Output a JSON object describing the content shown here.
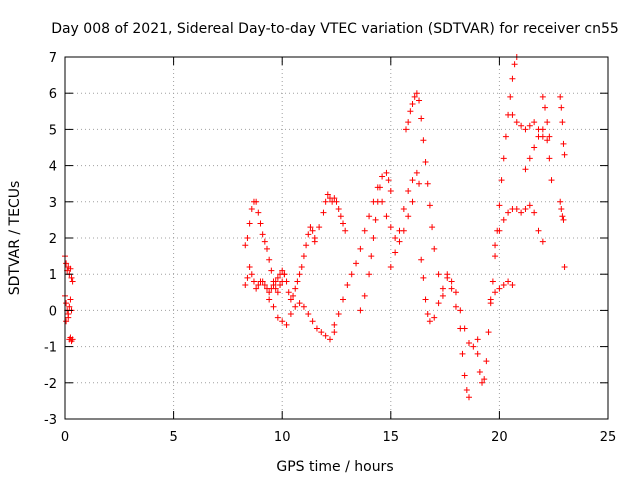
{
  "chart_data": {
    "type": "scatter",
    "title": "Day 008 of 2021, Sidereal Day-to-day VTEC variation (SDTVAR) for receiver cn55",
    "xlabel": "GPS time / hours",
    "ylabel": "SDTVAR / TECUs",
    "xlim": [
      0,
      25
    ],
    "ylim": [
      -3,
      7
    ],
    "x_ticks": [
      0,
      5,
      10,
      15,
      20,
      25
    ],
    "x_tick_labels": [
      "0",
      "5",
      "10",
      "15",
      "20",
      "25"
    ],
    "y_ticks": [
      -3,
      -2,
      -1,
      0,
      1,
      2,
      3,
      4,
      5,
      6,
      7
    ],
    "y_tick_labels": [
      "-3",
      "-2",
      "-1",
      "0",
      "1",
      "2",
      "3",
      "4",
      "5",
      "6",
      "7"
    ],
    "grid": true,
    "marker": "+",
    "marker_color": "#ff0000",
    "series": [
      {
        "points": [
          [
            0.0,
            1.5
          ],
          [
            0.05,
            1.3
          ],
          [
            0.1,
            1.1
          ],
          [
            0.15,
            1.2
          ],
          [
            0.2,
            1.0
          ],
          [
            0.25,
            1.15
          ],
          [
            0.3,
            0.9
          ],
          [
            0.35,
            0.8
          ],
          [
            0.0,
            0.4
          ],
          [
            0.05,
            0.2
          ],
          [
            0.1,
            0.0
          ],
          [
            0.15,
            -0.2
          ],
          [
            0.2,
            0.1
          ],
          [
            0.25,
            0.3
          ],
          [
            0.3,
            0.0
          ],
          [
            0.05,
            -0.3
          ],
          [
            0.15,
            -0.1
          ],
          [
            0.2,
            -0.8
          ],
          [
            0.25,
            -0.75
          ],
          [
            0.3,
            -0.85
          ],
          [
            0.35,
            -0.8
          ],
          [
            8.3,
            1.8
          ],
          [
            8.4,
            2.0
          ],
          [
            8.5,
            2.4
          ],
          [
            8.6,
            2.8
          ],
          [
            8.7,
            3.0
          ],
          [
            8.8,
            3.0
          ],
          [
            8.9,
            2.7
          ],
          [
            9.0,
            2.4
          ],
          [
            9.1,
            2.1
          ],
          [
            9.2,
            1.9
          ],
          [
            9.3,
            1.7
          ],
          [
            9.4,
            1.4
          ],
          [
            9.5,
            1.1
          ],
          [
            9.6,
            0.8
          ],
          [
            9.7,
            0.6
          ],
          [
            9.8,
            0.5
          ],
          [
            9.9,
            0.7
          ],
          [
            10.0,
            0.8
          ],
          [
            10.1,
            1.0
          ],
          [
            8.3,
            0.7
          ],
          [
            8.4,
            0.9
          ],
          [
            8.5,
            1.2
          ],
          [
            8.6,
            1.0
          ],
          [
            8.7,
            0.8
          ],
          [
            8.8,
            0.6
          ],
          [
            8.9,
            0.7
          ],
          [
            9.0,
            0.8
          ],
          [
            9.1,
            0.8
          ],
          [
            9.2,
            0.7
          ],
          [
            9.3,
            0.6
          ],
          [
            9.4,
            0.5
          ],
          [
            9.5,
            0.6
          ],
          [
            9.6,
            0.7
          ],
          [
            9.7,
            0.8
          ],
          [
            9.8,
            0.9
          ],
          [
            9.9,
            1.0
          ],
          [
            10.0,
            1.1
          ],
          [
            10.1,
            1.0
          ],
          [
            10.2,
            0.8
          ],
          [
            10.3,
            0.5
          ],
          [
            10.4,
            0.3
          ],
          [
            10.5,
            0.4
          ],
          [
            10.6,
            0.6
          ],
          [
            10.7,
            0.8
          ],
          [
            10.8,
            1.0
          ],
          [
            10.9,
            1.2
          ],
          [
            11.0,
            1.5
          ],
          [
            11.1,
            1.8
          ],
          [
            11.2,
            2.1
          ],
          [
            11.3,
            2.3
          ],
          [
            11.4,
            2.2
          ],
          [
            11.5,
            2.0
          ],
          [
            9.4,
            0.3
          ],
          [
            9.6,
            0.1
          ],
          [
            9.8,
            -0.2
          ],
          [
            10.0,
            -0.3
          ],
          [
            10.2,
            -0.4
          ],
          [
            10.4,
            -0.1
          ],
          [
            10.6,
            0.1
          ],
          [
            10.8,
            0.2
          ],
          [
            11.0,
            0.1
          ],
          [
            11.2,
            -0.1
          ],
          [
            11.4,
            -0.3
          ],
          [
            11.6,
            -0.5
          ],
          [
            11.8,
            -0.6
          ],
          [
            12.0,
            -0.7
          ],
          [
            12.2,
            -0.8
          ],
          [
            12.4,
            -0.6
          ],
          [
            11.5,
            1.9
          ],
          [
            11.7,
            2.3
          ],
          [
            11.9,
            2.7
          ],
          [
            12.0,
            3.0
          ],
          [
            12.1,
            3.2
          ],
          [
            12.2,
            3.1
          ],
          [
            12.3,
            3.0
          ],
          [
            12.4,
            3.1
          ],
          [
            12.5,
            3.0
          ],
          [
            12.6,
            2.8
          ],
          [
            12.7,
            2.6
          ],
          [
            12.8,
            2.4
          ],
          [
            12.9,
            2.2
          ],
          [
            12.4,
            -0.4
          ],
          [
            12.6,
            -0.1
          ],
          [
            12.8,
            0.3
          ],
          [
            13.0,
            0.7
          ],
          [
            13.2,
            1.0
          ],
          [
            13.4,
            1.3
          ],
          [
            13.6,
            1.7
          ],
          [
            13.8,
            2.2
          ],
          [
            14.0,
            2.6
          ],
          [
            14.2,
            3.0
          ],
          [
            14.4,
            3.4
          ],
          [
            14.6,
            3.7
          ],
          [
            14.8,
            3.8
          ],
          [
            14.9,
            3.6
          ],
          [
            15.0,
            3.3
          ],
          [
            13.6,
            0.0
          ],
          [
            13.8,
            0.4
          ],
          [
            14.0,
            1.0
          ],
          [
            14.1,
            1.5
          ],
          [
            14.2,
            2.0
          ],
          [
            14.3,
            2.5
          ],
          [
            14.4,
            3.0
          ],
          [
            14.5,
            3.4
          ],
          [
            14.6,
            3.0
          ],
          [
            14.8,
            2.6
          ],
          [
            15.0,
            2.3
          ],
          [
            15.2,
            2.0
          ],
          [
            15.4,
            1.9
          ],
          [
            15.6,
            2.2
          ],
          [
            15.8,
            2.6
          ],
          [
            16.0,
            3.0
          ],
          [
            15.0,
            1.2
          ],
          [
            15.2,
            1.6
          ],
          [
            15.4,
            2.2
          ],
          [
            15.6,
            2.8
          ],
          [
            15.8,
            3.3
          ],
          [
            16.0,
            3.6
          ],
          [
            16.2,
            3.8
          ],
          [
            16.3,
            3.5
          ],
          [
            15.7,
            5.0
          ],
          [
            15.8,
            5.2
          ],
          [
            15.9,
            5.5
          ],
          [
            16.0,
            5.7
          ],
          [
            16.1,
            5.9
          ],
          [
            16.2,
            6.0
          ],
          [
            16.3,
            5.8
          ],
          [
            16.4,
            5.3
          ],
          [
            16.5,
            4.7
          ],
          [
            16.6,
            4.1
          ],
          [
            16.7,
            3.5
          ],
          [
            16.8,
            2.9
          ],
          [
            16.9,
            2.3
          ],
          [
            17.0,
            1.7
          ],
          [
            17.2,
            1.0
          ],
          [
            17.4,
            0.4
          ],
          [
            16.4,
            1.4
          ],
          [
            16.5,
            0.9
          ],
          [
            16.6,
            0.3
          ],
          [
            16.7,
            -0.1
          ],
          [
            16.8,
            -0.3
          ],
          [
            17.0,
            -0.2
          ],
          [
            17.2,
            0.2
          ],
          [
            17.4,
            0.6
          ],
          [
            17.6,
            0.9
          ],
          [
            17.8,
            0.8
          ],
          [
            18.0,
            0.5
          ],
          [
            18.2,
            0.0
          ],
          [
            18.4,
            -0.5
          ],
          [
            18.6,
            -0.9
          ],
          [
            18.8,
            -1.0
          ],
          [
            19.0,
            -0.8
          ],
          [
            17.6,
            1.0
          ],
          [
            17.8,
            0.6
          ],
          [
            18.0,
            0.1
          ],
          [
            18.2,
            -0.5
          ],
          [
            18.3,
            -1.2
          ],
          [
            18.4,
            -1.8
          ],
          [
            18.5,
            -2.2
          ],
          [
            18.6,
            -2.4
          ],
          [
            19.0,
            -1.2
          ],
          [
            19.1,
            -1.7
          ],
          [
            19.2,
            -2.0
          ],
          [
            19.3,
            -1.9
          ],
          [
            19.4,
            -1.4
          ],
          [
            19.5,
            -0.6
          ],
          [
            19.6,
            0.2
          ],
          [
            19.7,
            0.8
          ],
          [
            19.8,
            1.5
          ],
          [
            19.9,
            2.2
          ],
          [
            20.0,
            2.9
          ],
          [
            20.1,
            3.6
          ],
          [
            20.2,
            4.2
          ],
          [
            20.3,
            4.8
          ],
          [
            20.4,
            5.4
          ],
          [
            20.5,
            5.9
          ],
          [
            20.6,
            6.4
          ],
          [
            20.7,
            6.8
          ],
          [
            20.8,
            7.0
          ],
          [
            19.6,
            0.3
          ],
          [
            19.8,
            0.5
          ],
          [
            20.0,
            0.6
          ],
          [
            20.2,
            0.7
          ],
          [
            20.4,
            0.8
          ],
          [
            20.6,
            0.7
          ],
          [
            19.8,
            1.8
          ],
          [
            20.0,
            2.2
          ],
          [
            20.2,
            2.5
          ],
          [
            20.4,
            2.7
          ],
          [
            20.6,
            2.8
          ],
          [
            20.8,
            2.8
          ],
          [
            21.0,
            2.7
          ],
          [
            21.2,
            2.8
          ],
          [
            21.4,
            2.9
          ],
          [
            21.6,
            2.7
          ],
          [
            21.8,
            2.2
          ],
          [
            22.0,
            1.9
          ],
          [
            20.6,
            5.4
          ],
          [
            20.8,
            5.2
          ],
          [
            21.0,
            5.1
          ],
          [
            21.2,
            5.0
          ],
          [
            21.4,
            5.1
          ],
          [
            21.6,
            5.2
          ],
          [
            21.8,
            5.0
          ],
          [
            22.0,
            4.8
          ],
          [
            21.2,
            3.9
          ],
          [
            21.4,
            4.2
          ],
          [
            21.6,
            4.5
          ],
          [
            21.8,
            4.8
          ],
          [
            22.0,
            5.0
          ],
          [
            22.2,
            4.7
          ],
          [
            22.3,
            4.2
          ],
          [
            22.4,
            3.6
          ],
          [
            22.0,
            5.9
          ],
          [
            22.1,
            5.6
          ],
          [
            22.2,
            5.2
          ],
          [
            22.3,
            4.8
          ],
          [
            22.8,
            5.9
          ],
          [
            22.85,
            5.6
          ],
          [
            22.9,
            5.2
          ],
          [
            22.95,
            4.6
          ],
          [
            23.0,
            4.3
          ],
          [
            22.8,
            3.0
          ],
          [
            22.85,
            2.8
          ],
          [
            22.9,
            2.6
          ],
          [
            22.95,
            2.5
          ],
          [
            23.0,
            1.2
          ]
        ]
      }
    ]
  }
}
